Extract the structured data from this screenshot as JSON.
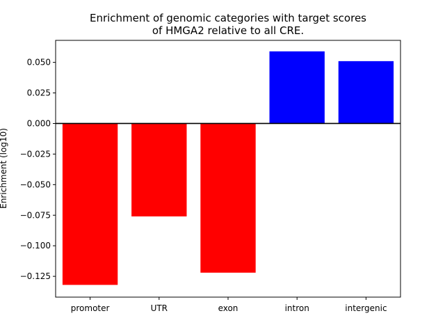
{
  "chart_data": {
    "type": "bar",
    "title_line1": "Enrichment of genomic categories with target scores",
    "title_line2": "of HMGA2 relative to all CRE.",
    "xlabel": "",
    "ylabel": "Enrichment (log10)",
    "categories": [
      "promoter",
      "UTR",
      "exon",
      "intron",
      "intergenic"
    ],
    "values": [
      -0.132,
      -0.076,
      -0.122,
      0.059,
      0.051
    ],
    "colors": [
      "#ff0000",
      "#ff0000",
      "#ff0000",
      "#0000ff",
      "#0000ff"
    ],
    "ylim": [
      -0.142,
      0.068
    ],
    "yticks": [
      0.05,
      0.025,
      0.0,
      -0.025,
      -0.05,
      -0.075,
      -0.1,
      -0.125
    ],
    "ytick_labels": [
      "0.050",
      "0.025",
      "0.000",
      "−0.025",
      "−0.050",
      "−0.075",
      "−0.100",
      "−0.125"
    ],
    "zero_line": true,
    "grid": false
  }
}
